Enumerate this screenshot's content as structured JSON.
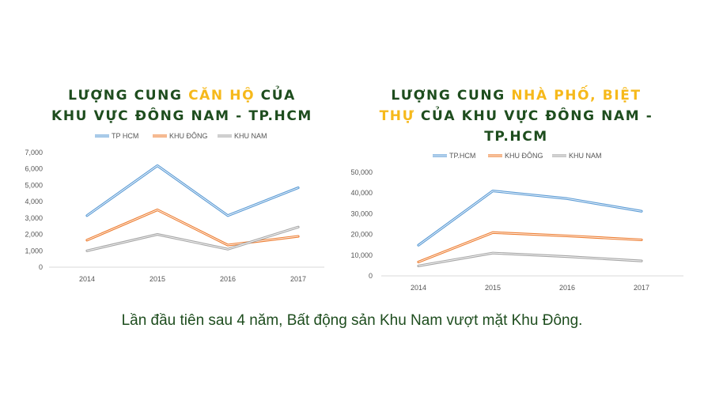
{
  "slide": {
    "caption": "Lần đầu tiên sau 4 năm, Bất động sản Khu Nam vượt mặt Khu Đông."
  },
  "colors": {
    "title_green": "#1e4d1e",
    "title_highlight": "#f6b91b",
    "series_blue": "#5b9bd5",
    "series_orange": "#ed7d31",
    "series_gray": "#a5a5a5"
  },
  "chart_data": [
    {
      "type": "line",
      "title_parts": [
        "LƯỢNG CUNG ",
        "CĂN HỘ",
        " CỦA KHU VỰC ĐÔNG NAM - TP.HCM"
      ],
      "x": [
        "2014",
        "2015",
        "2016",
        "2017"
      ],
      "series": [
        {
          "name": "TP HCM",
          "values": [
            3150,
            6200,
            3150,
            4850
          ]
        },
        {
          "name": "KHU ĐÔNG",
          "values": [
            1650,
            3500,
            1350,
            1880
          ]
        },
        {
          "name": "KHU NAM",
          "values": [
            1000,
            2000,
            1100,
            2450
          ]
        }
      ],
      "y_ticks": [
        "0",
        "1,000",
        "2,000",
        "3,000",
        "4,000",
        "5,000",
        "6,000",
        "7,000"
      ],
      "ylim": [
        0,
        7000
      ],
      "legend_position": "top",
      "grid": false
    },
    {
      "type": "line",
      "title_parts": [
        "LƯỢNG CUNG ",
        "NHÀ PHỐ, BIỆT THỰ",
        " CỦA KHU VỰC ĐÔNG NAM - TP.HCM"
      ],
      "x": [
        "2014",
        "2015",
        "2016",
        "2017"
      ],
      "series": [
        {
          "name": "TP.HCM",
          "values": [
            14800,
            41000,
            37300,
            31200
          ]
        },
        {
          "name": "KHU ĐÔNG",
          "values": [
            6700,
            20900,
            19300,
            17400
          ]
        },
        {
          "name": "KHU NAM",
          "values": [
            4800,
            11000,
            9300,
            7200
          ]
        }
      ],
      "y_ticks": [
        "0",
        "10,000",
        "20,000",
        "30,000",
        "40,000",
        "50,000"
      ],
      "ylim": [
        0,
        50000
      ],
      "legend_position": "top",
      "grid": false
    }
  ]
}
